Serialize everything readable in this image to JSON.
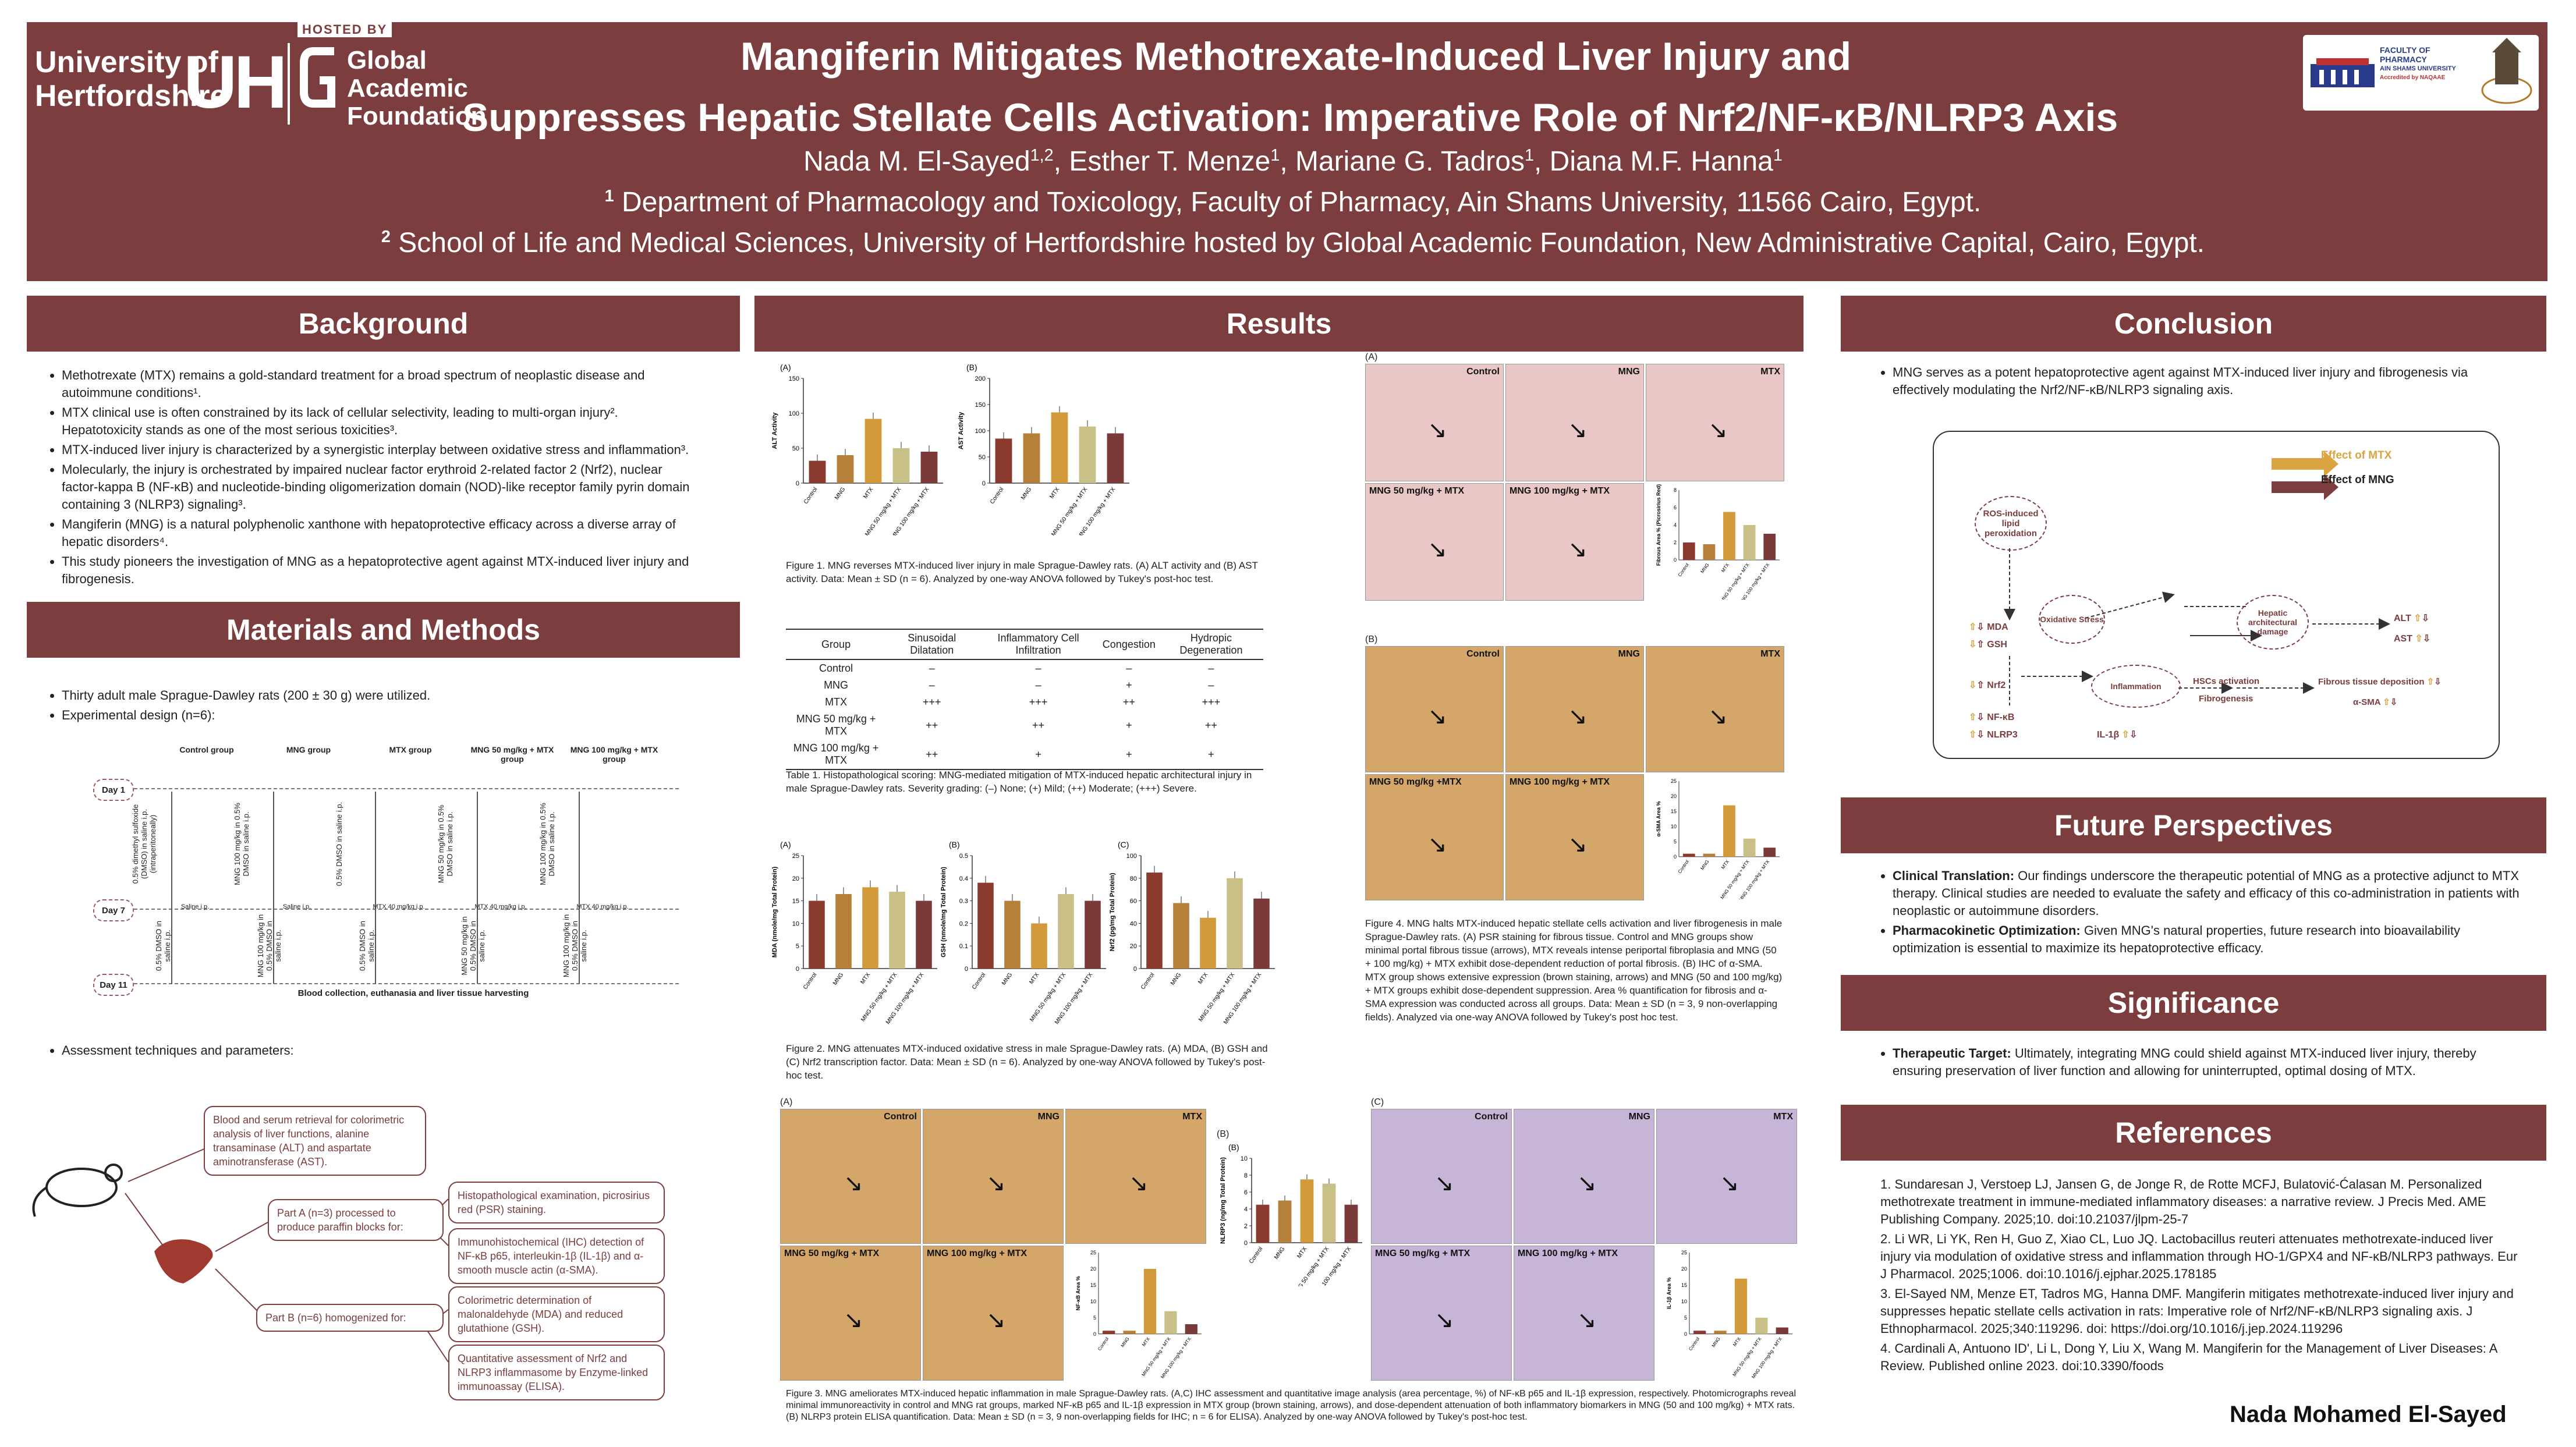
{
  "header": {
    "logo_uh_line1": "University of",
    "logo_uh_line2": "Hertfordshire",
    "logo_uh_mark": "UH",
    "hosted_by": "HOSTED BY",
    "gaf_line1": "Global",
    "gaf_line2": "Academic",
    "gaf_line3": "Foundation",
    "title_line1": "Mangiferin Mitigates Methotrexate-Induced Liver Injury and",
    "title_line2": "Suppresses Hepatic Stellate Cells Activation: Imperative Role of Nrf2/NF-κB/NLRP3 Axis",
    "authors": [
      "Nada M. El-Sayed",
      "1,2",
      ", Esther T. Menze",
      "1",
      ", Mariane G. Tadros",
      "1",
      ", Diana M.F. Hanna",
      "1"
    ],
    "aff1_num": "1",
    "aff1": "Department of Pharmacology and Toxicology, Faculty of Pharmacy, Ain Shams University, 11566 Cairo, Egypt.",
    "aff2_num": "2",
    "aff2": "School of Life and Medical Sciences, University of Hertfordshire hosted by Global Academic Foundation, New Administrative Capital, Cairo, Egypt.",
    "right_logo_line1": "FACULTY OF",
    "right_logo_line2": "PHARMACY",
    "right_logo_line3": "AIN SHAMS UNIVERSITY",
    "right_logo_line4": "Accredited by NAQAAE"
  },
  "background": {
    "heading": "Background",
    "items": [
      "Methotrexate (MTX) remains a gold-standard treatment for a broad spectrum of neoplastic disease and autoimmune conditions¹.",
      "MTX clinical use is often constrained by its lack of cellular selectivity, leading to multi-organ injury². Hepatotoxicity stands as one of the most serious toxicities³.",
      "MTX-induced liver injury is characterized by a synergistic interplay between oxidative stress and inflammation³.",
      "Molecularly, the injury is orchestrated by impaired nuclear factor erythroid 2-related factor 2 (Nrf2), nuclear factor-kappa B (NF-κB) and nucleotide-binding oligomerization domain (NOD)-like receptor family pyrin domain containing 3 (NLRP3) signaling³.",
      "Mangiferin (MNG) is a natural polyphenolic xanthone with hepatoprotective efficacy across a diverse array of hepatic disorders⁴.",
      "This study pioneers the investigation of MNG as a hepatoprotective agent against MTX-induced liver injury and fibrogenesis."
    ]
  },
  "methods": {
    "heading": "Materials and Methods",
    "items": [
      "Thirty adult male Sprague-Dawley rats (200 ± 30 g) were utilized.",
      "Experimental design (n=6):"
    ],
    "groups": [
      "Control group",
      "MNG group",
      "MTX group",
      "MNG 50 mg/kg + MTX group",
      "MNG 100 mg/kg + MTX group"
    ],
    "days": [
      "Day 1",
      "Day 7",
      "Day 11"
    ],
    "day1_treat": [
      "0.5% dimethyl sulfoxide (DMSO) in saline i.p. (intraperitoneally)",
      "MNG 100 mg/kg in 0.5% DMSO in saline i.p.",
      "0.5% DMSO in saline i.p.",
      "MNG 50 mg/kg in 0.5% DMSO in saline i.p.",
      "MNG 100 mg/kg in 0.5% DMSO in saline i.p."
    ],
    "day7_treat": [
      "Saline i.p.",
      "Saline i.p.",
      "MTX 40 mg/kg i.p.",
      "MTX 40 mg/kg i.p.",
      "MTX 40 mg/kg i.p."
    ],
    "day11_treat": [
      "0.5% DMSO in saline i.p.",
      "MNG 100 mg/kg in 0.5% DMSO in saline i.p.",
      "0.5% DMSO in saline i.p.",
      "MNG 50 mg/kg in 0.5% DMSO in saline i.p.",
      "MNG 100 mg/kg in 0.5% DMSO in saline i.p."
    ],
    "end_note": "Blood collection, euthanasia and liver tissue harvesting",
    "assess_item": "Assessment techniques and parameters:",
    "assess_blood": "Blood and serum retrieval for colorimetric analysis of liver functions, alanine transaminase (ALT) and aspartate aminotransferase (AST).",
    "assess_partA": "Part A (n=3) processed to produce paraffin blocks for:",
    "assess_partB": "Part B (n=6) homogenized for:",
    "assess_hist": "Histopathological examination, picrosirius red (PSR) staining.",
    "assess_ihc": "Immunohistochemical (IHC) detection of NF-κB p65, interleukin-1β (IL-1β) and α- smooth muscle actin (α-SMA).",
    "assess_color": "Colorimetric determination of malonaldehyde (MDA) and reduced glutathione (GSH).",
    "assess_elisa": "Quantitative assessment of Nrf2 and NLRP3 inflammasome by Enzyme-linked immunoassay (ELISA)."
  },
  "results": {
    "heading": "Results",
    "fig1_caption": "Figure 1. MNG reverses MTX-induced liver injury in male Sprague-Dawley rats. (A) ALT activity and (B) AST activity. Data: Mean ± SD (n = 6). Analyzed by one-way ANOVA followed by Tukey's post-hoc test.",
    "table_caption": "Table 1. Histopathological scoring: MNG-mediated mitigation of MTX-induced hepatic architectural injury in male Sprague-Dawley rats. Severity grading: (–) None; (+) Mild; (++) Moderate; (+++) Severe.",
    "table_headers": [
      "Group",
      "Sinusoidal Dilatation",
      "Inflammatory Cell Infiltration",
      "Congestion",
      "Hydropic Degeneration"
    ],
    "table_rows": [
      [
        "Control",
        "–",
        "–",
        "–",
        "–"
      ],
      [
        "MNG",
        "–",
        "–",
        "+",
        "–"
      ],
      [
        "MTX",
        "+++",
        "+++",
        "++",
        "+++"
      ],
      [
        "MNG 50 mg/kg + MTX",
        "++",
        "++",
        "+",
        "++"
      ],
      [
        "MNG 100 mg/kg + MTX",
        "++",
        "+",
        "+",
        "+"
      ]
    ],
    "fig2_caption": "Figure 2. MNG attenuates MTX-induced oxidative stress in male Sprague-Dawley rats. (A) MDA, (B) GSH and (C) Nrf2 transcription factor. Data: Mean ± SD (n = 6). Analyzed by one-way ANOVA followed by Tukey's post-hoc test.",
    "fig3_caption": "Figure 3. MNG ameliorates MTX-induced hepatic inflammation in male Sprague-Dawley rats. (A,C) IHC assessment and quantitative image analysis (area percentage, %) of NF-κB p65 and IL-1β expression, respectively. Photomicrographs reveal minimal immunoreactivity in control and MNG rat groups, marked NF-κB p65 and IL-1β expression in MTX group (brown staining, arrows), and dose-dependent attenuation of both inflammatory biomarkers in MNG (50 and 100 mg/kg) + MTX rats. (B) NLRP3 protein ELISA quantification. Data: Mean ± SD (n = 3, 9 non-overlapping fields for IHC; n = 6 for ELISA). Analyzed by one-way ANOVA followed by Tukey's post-hoc test.",
    "fig4_caption": "Figure 4. MNG halts MTX-induced hepatic stellate cells activation and liver fibrogenesis in male Sprague-Dawley rats. (A) PSR staining for fibrous tissue. Control and MNG groups show minimal portal fibrous tissue (arrows), MTX reveals intense periportal fibroplasia and MNG (50 + 100 mg/kg) + MTX exhibit dose-dependent reduction of portal fibrosis. (B) IHC of α-SMA. MTX group shows extensive expression (brown staining, arrows) and MNG (50 and 100 mg/kg) + MTX groups exhibit dose-dependent suppression. Area % quantification for fibrosis and α-SMA expression was conducted across all groups. Data: Mean ± SD (n = 3, 9 non-overlapping fields). Analyzed via one-way ANOVA followed by Tukey's post hoc test.",
    "micro_labels": [
      "Control",
      "MNG",
      "MTX",
      "MNG 50 mg/kg + MTX",
      "MNG 100 mg/kg + MTX"
    ],
    "micro_labels_b": [
      "Control",
      "MNG",
      "MTX",
      "MNG 50 mg/kg +MTX",
      "MNG 100 mg/kg + MTX"
    ],
    "panel_letters": [
      "(A)",
      "(B)",
      "(C)"
    ]
  },
  "chart_data": [
    {
      "id": "alt",
      "type": "bar",
      "panel": "(A)",
      "ylabel": "ALT Activity",
      "ylim": [
        0,
        150
      ],
      "ticks": [
        0,
        50,
        100,
        150
      ],
      "categories": [
        "Control",
        "MNG",
        "MTX",
        "MNG 50 mg/kg + MTX",
        "MNG 100 mg/kg + MTX"
      ],
      "values": [
        32,
        40,
        92,
        50,
        45
      ]
    },
    {
      "id": "ast",
      "type": "bar",
      "panel": "(B)",
      "ylabel": "AST Activity",
      "ylim": [
        0,
        200
      ],
      "ticks": [
        0,
        50,
        100,
        150,
        200
      ],
      "categories": [
        "Control",
        "MNG",
        "MTX",
        "MNG 50 mg/kg + MTX",
        "MNG 100 mg/kg + MTX"
      ],
      "values": [
        85,
        95,
        135,
        108,
        95
      ]
    },
    {
      "id": "mda",
      "type": "bar",
      "panel": "(A)",
      "ylabel": "MDA (nmole/mg Total Protein)",
      "ylim": [
        0,
        25
      ],
      "ticks": [
        0,
        5,
        10,
        15,
        20,
        25
      ],
      "categories": [
        "Control",
        "MNG",
        "MTX",
        "MNG 50 mg/kg + MTX",
        "MNG 100 mg/kg + MTX"
      ],
      "values": [
        15,
        16.5,
        18,
        17,
        15
      ]
    },
    {
      "id": "gsh",
      "type": "bar",
      "panel": "(B)",
      "ylabel": "GSH (nmole/mg Total Protein)",
      "ylim": [
        0,
        0.5
      ],
      "ticks": [
        0,
        0.1,
        0.2,
        0.3,
        0.4,
        0.5
      ],
      "categories": [
        "Control",
        "MNG",
        "MTX",
        "MNG 50 mg/kg + MTX",
        "MNG 100 mg/kg + MTX"
      ],
      "values": [
        0.38,
        0.3,
        0.2,
        0.33,
        0.3
      ]
    },
    {
      "id": "nrf2",
      "type": "bar",
      "panel": "(C)",
      "ylabel": "Nrf2 (pg/mg Total Protein)",
      "ylim": [
        0,
        100
      ],
      "ticks": [
        0,
        20,
        40,
        60,
        80,
        100
      ],
      "categories": [
        "Control",
        "MNG",
        "MTX",
        "MNG 50 mg/kg + MTX",
        "MNG 100 mg/kg + MTX"
      ],
      "values": [
        85,
        58,
        45,
        80,
        62
      ]
    },
    {
      "id": "psr",
      "type": "bar",
      "panel": "",
      "ylabel": "Fibrous Area % (Picrosirius Red)",
      "ylim": [
        0,
        8
      ],
      "ticks": [
        0,
        2,
        4,
        6,
        8
      ],
      "categories": [
        "Control",
        "MNG",
        "MTX",
        "MNG 50 mg/kg + MTX",
        "MNG 100 mg/kg + MTX"
      ],
      "values": [
        2,
        1.8,
        5.5,
        4,
        3
      ]
    },
    {
      "id": "asma",
      "type": "bar",
      "panel": "",
      "ylabel": "α-SMA Area %",
      "ylim": [
        0,
        25
      ],
      "ticks": [
        0,
        5,
        10,
        15,
        20,
        25
      ],
      "categories": [
        "Control",
        "MNG",
        "MTX",
        "MNG 50 mg/kg + MTX",
        "MNG 100 mg/kg + MTX"
      ],
      "values": [
        1,
        1,
        17,
        6,
        3
      ]
    },
    {
      "id": "nfkb",
      "type": "bar",
      "panel": "",
      "ylabel": "NF-κB Area %",
      "ylim": [
        0,
        25
      ],
      "ticks": [
        0,
        5,
        10,
        15,
        20,
        25
      ],
      "categories": [
        "Control",
        "MNG",
        "MTX",
        "MNG 50 mg/kg + MTX",
        "MNG 100 mg/kg + MTX"
      ],
      "values": [
        1,
        1,
        20,
        7,
        3
      ]
    },
    {
      "id": "nlrp3",
      "type": "bar",
      "panel": "(B)",
      "ylabel": "NLRP3 (ng/mg Total Protein)",
      "ylim": [
        0,
        10
      ],
      "ticks": [
        0,
        2,
        4,
        6,
        8,
        10
      ],
      "categories": [
        "Control",
        "MNG",
        "MTX",
        "MNG 50 mg/kg + MTX",
        "MNG 100 mg/kg + MTX"
      ],
      "values": [
        4.5,
        5,
        7.5,
        7,
        4.5
      ]
    },
    {
      "id": "il1b",
      "type": "bar",
      "panel": "",
      "ylabel": "IL-1β Area %",
      "ylim": [
        0,
        25
      ],
      "ticks": [
        0,
        5,
        10,
        15,
        20,
        25
      ],
      "categories": [
        "Control",
        "MNG",
        "MTX",
        "MNG 50 mg/kg + MTX",
        "MNG 100 mg/kg + MTX"
      ],
      "values": [
        1,
        1,
        17,
        5,
        2
      ]
    }
  ],
  "conclusion": {
    "heading": "Conclusion",
    "text": "MNG serves as a potent hepatoprotective agent against MTX-induced liver injury and fibrogenesis via effectively modulating the Nrf2/NF-κB/NLRP3 signaling axis.",
    "legend_mtx": "Effect of MTX",
    "legend_mng": "Effect of MNG",
    "nodes": {
      "ros": "ROS-induced lipid peroxidation",
      "oxid": "Oxidative Stress",
      "hepatic": "Hepatic architectural damage",
      "inflam": "Inflammation",
      "mda": "MDA",
      "gsh": "GSH",
      "nrf2": "Nrf2",
      "nfkb": "NF-κB",
      "nlrp3": "NLRP3",
      "il1b": "IL-1β",
      "alt": "ALT",
      "ast": "AST",
      "hsc": "HSCs activation",
      "fibro": "Fibrogenesis",
      "fibtissue": "Fibrous tissue deposition",
      "asma": "α-SMA"
    }
  },
  "future": {
    "heading": "Future Perspectives",
    "item1_title": "Clinical Translation:",
    "item1": " Our findings underscore the therapeutic potential of MNG as a protective adjunct to MTX therapy. Clinical studies are needed to evaluate the safety and efficacy of this co-administration in patients with neoplastic or autoimmune disorders.",
    "item2_title": "Pharmacokinetic Optimization:",
    "item2": " Given MNG's natural properties, future research into bioavailability optimization is essential to maximize its hepatoprotective efficacy."
  },
  "significance": {
    "heading": "Significance",
    "title": "Therapeutic Target:",
    "text": " Ultimately, integrating MNG could shield against MTX-induced liver injury, thereby ensuring preservation of liver function and allowing for uninterrupted, optimal dosing of MTX."
  },
  "references": {
    "heading": "References",
    "items": [
      "1. Sundaresan J, Verstoep LJ, Jansen G, de Jonge R, de Rotte MCFJ, Bulatović-Ćalasan M. Personalized methotrexate treatment in immune-mediated inflammatory diseases: a narrative review. J Precis Med. AME Publishing Company. 2025;10. doi:10.21037/jlpm-25-7",
      "2. Li WR, Li YK, Ren H, Guo Z, Xiao CL, Luo JQ. Lactobacillus reuteri attenuates methotrexate-induced liver injury via modulation of oxidative stress and inflammation through HO-1/GPX4 and NF-κB/NLRP3 pathways. Eur J Pharmacol. 2025;1006. doi:10.1016/j.ejphar.2025.178185",
      "3. El-Sayed NM, Menze ET, Tadros MG, Hanna DMF. Mangiferin mitigates methotrexate-induced liver injury and suppresses hepatic stellate cells activation in rats: Imperative role of Nrf2/NF-κB/NLRP3 signaling axis. J Ethnopharmacol. 2025;340:119296. doi: https://doi.org/10.1016/j.jep.2024.119296",
      "4. Cardinali A, Antuono ID', Li L, Dong Y, Liu X, Wang M. Mangiferin for the Management of Liver Diseases: A Review. Published online 2023. doi:10.3390/foods"
    ]
  },
  "footer_name": "Nada Mohamed El-Sayed",
  "colors": {
    "maroon": "#7b3d3d",
    "mtx_arrow": "#d9a441",
    "mng_arrow": "#7b3d3d",
    "bar_colors": [
      "#8a3b2e",
      "#b5803a",
      "#d39a3c",
      "#c9c087",
      "#7b3a3a"
    ]
  }
}
